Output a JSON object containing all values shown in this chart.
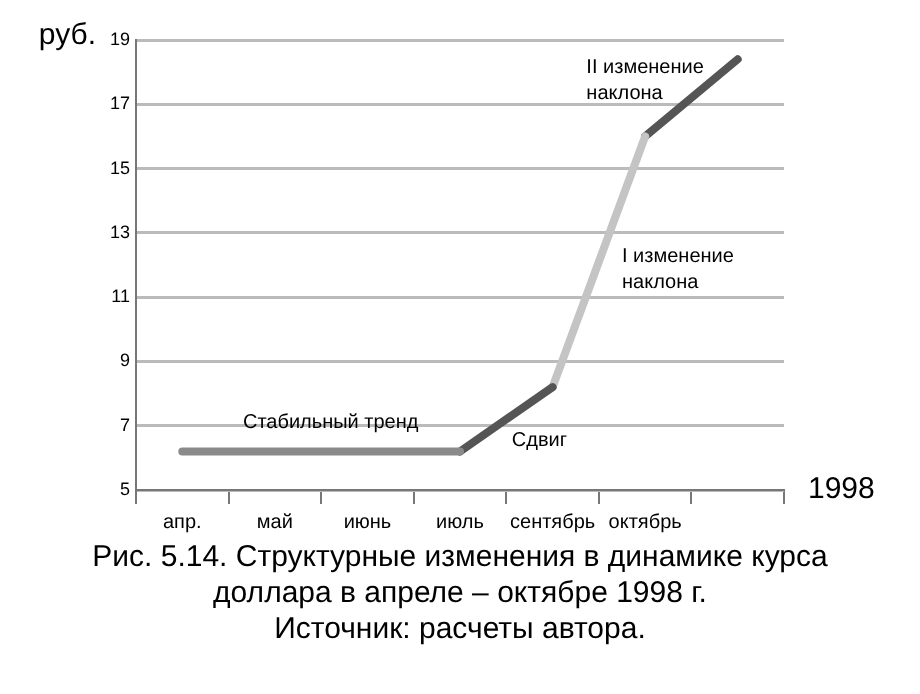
{
  "chart_data": {
    "type": "line",
    "xlabel": "1998",
    "ylabel": "руб.",
    "categories": [
      "апр.",
      "май",
      "июнь",
      "июль",
      "сентябрь",
      "октябрь",
      null
    ],
    "ylim": [
      5,
      19
    ],
    "yticks": [
      5,
      7,
      9,
      11,
      13,
      15,
      17,
      19
    ],
    "grid": "y",
    "marker": "none",
    "line_style": "solid",
    "legend": false,
    "series": [
      {
        "color": "#8a8a8a",
        "values": [
          6.2,
          null,
          null,
          6.2,
          null,
          null,
          null
        ]
      },
      {
        "color": "#555555",
        "values": [
          null,
          null,
          null,
          6.2,
          8.2,
          null,
          null
        ]
      },
      {
        "color": "#c4c4c4",
        "values": [
          null,
          null,
          null,
          null,
          8.2,
          16.0,
          null
        ]
      },
      {
        "color": "#555555",
        "values": [
          null,
          null,
          null,
          null,
          null,
          16.0,
          18.4
        ]
      }
    ],
    "annotations": [
      "Стабильный тренд",
      "Сдвиг",
      "I изменение\nнаклона",
      "II изменение\nнаклона",
      "Рис. 5.14. Структурные изменения в динамике курса доллара в апреле – октябре 1998 г.",
      "Источник: расчеты автора."
    ]
  }
}
